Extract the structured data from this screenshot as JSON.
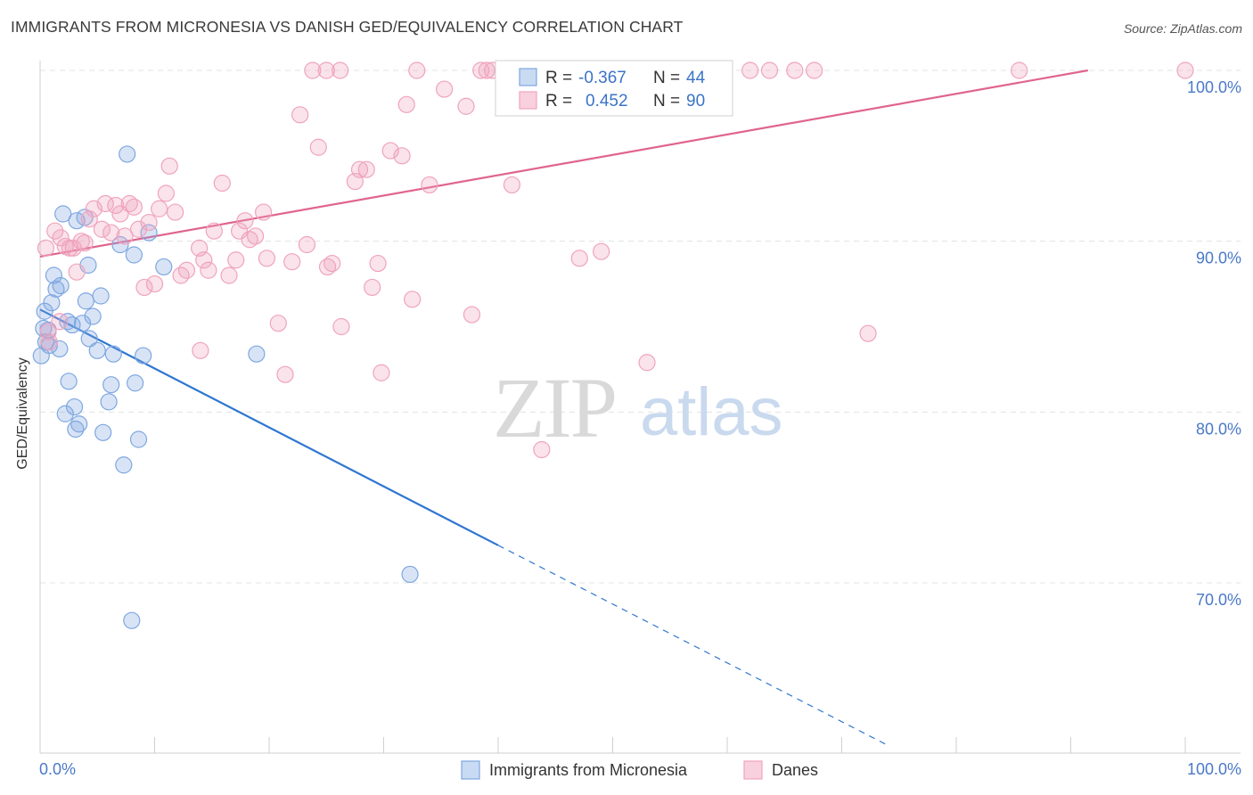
{
  "header": {
    "title": "IMMIGRANTS FROM MICRONESIA VS DANISH GED/EQUIVALENCY CORRELATION CHART",
    "source": "Source: ZipAtlas.com"
  },
  "watermark": {
    "zip": "ZIP",
    "atlas": "atlas"
  },
  "legend": {
    "r_label": "R =",
    "n_label": "N =",
    "entries": [
      {
        "r": "-0.367",
        "n": "44",
        "color": "#7ea7e0"
      },
      {
        "r": "0.452",
        "n": "90",
        "color": "#f0a3bd"
      }
    ]
  },
  "bottom_legend": [
    {
      "label": "Immigrants from Micronesia",
      "color": "#7ea7e0"
    },
    {
      "label": "Danes",
      "color": "#f0a3bd"
    }
  ],
  "chart_data": {
    "type": "scatter",
    "title": "IMMIGRANTS FROM MICRONESIA VS DANISH GED/EQUIVALENCY CORRELATION CHART",
    "xlabel": "",
    "ylabel": "GED/Equivalency",
    "xlim": [
      0,
      100
    ],
    "ylim": [
      60.5,
      101
    ],
    "y_ticks": [
      {
        "value": 100,
        "label": "100.0%"
      },
      {
        "value": 90,
        "label": "90.0%"
      },
      {
        "value": 80,
        "label": "80.0%"
      },
      {
        "value": 70,
        "label": "70.0%"
      }
    ],
    "x_tick_labels": [
      {
        "value": 0,
        "label": "0.0%"
      },
      {
        "value": 100,
        "label": "100.0%"
      }
    ],
    "grid": true,
    "legend_position": "top-center",
    "series": [
      {
        "name": "Immigrants from Micronesia",
        "color": "#7ea7e0",
        "line_color": "#2f76d2",
        "r": -0.367,
        "n": 44,
        "trend": {
          "x0": 0,
          "y0": 86.0,
          "x1": 40,
          "y1": 72.2,
          "dash_to_x": 74,
          "dash_to_y": 60.5
        },
        "points": [
          [
            0.1,
            83.3
          ],
          [
            0.3,
            84.9
          ],
          [
            0.4,
            85.9
          ],
          [
            0.5,
            84.1
          ],
          [
            0.7,
            84.8
          ],
          [
            1.0,
            86.4
          ],
          [
            1.2,
            88.0
          ],
          [
            1.4,
            87.2
          ],
          [
            1.7,
            83.7
          ],
          [
            1.8,
            87.4
          ],
          [
            2.0,
            91.6
          ],
          [
            2.2,
            79.9
          ],
          [
            2.4,
            85.3
          ],
          [
            2.5,
            81.8
          ],
          [
            2.8,
            85.1
          ],
          [
            3.0,
            80.3
          ],
          [
            3.1,
            79.0
          ],
          [
            3.2,
            91.2
          ],
          [
            3.4,
            79.3
          ],
          [
            3.7,
            85.2
          ],
          [
            3.9,
            91.4
          ],
          [
            4.0,
            86.5
          ],
          [
            4.2,
            88.6
          ],
          [
            4.3,
            84.3
          ],
          [
            4.6,
            85.6
          ],
          [
            5.0,
            83.6
          ],
          [
            5.3,
            86.8
          ],
          [
            5.5,
            78.8
          ],
          [
            6.0,
            80.6
          ],
          [
            6.2,
            81.6
          ],
          [
            6.4,
            83.4
          ],
          [
            7.0,
            89.8
          ],
          [
            7.3,
            76.9
          ],
          [
            7.6,
            95.1
          ],
          [
            8.0,
            67.8
          ],
          [
            8.2,
            89.2
          ],
          [
            8.3,
            81.7
          ],
          [
            8.6,
            78.4
          ],
          [
            9.0,
            83.3
          ],
          [
            9.5,
            90.5
          ],
          [
            10.8,
            88.5
          ],
          [
            18.9,
            83.4
          ],
          [
            32.3,
            70.5
          ],
          [
            0.8,
            83.9
          ]
        ]
      },
      {
        "name": "Danes",
        "color": "#f0a3bd",
        "line_color": "#e0648e",
        "r": 0.452,
        "n": 90,
        "trend": {
          "x0": 0,
          "y0": 89.1,
          "x1": 91.5,
          "y1": 100.0
        },
        "points": [
          [
            0.5,
            89.6
          ],
          [
            0.7,
            84.7
          ],
          [
            0.8,
            84.1
          ],
          [
            1.3,
            90.6
          ],
          [
            1.7,
            85.3
          ],
          [
            1.8,
            90.2
          ],
          [
            2.2,
            89.7
          ],
          [
            2.6,
            89.6
          ],
          [
            2.9,
            89.6
          ],
          [
            3.2,
            88.2
          ],
          [
            3.6,
            90.0
          ],
          [
            3.9,
            89.9
          ],
          [
            4.3,
            91.3
          ],
          [
            4.7,
            91.9
          ],
          [
            5.4,
            90.7
          ],
          [
            5.7,
            92.2
          ],
          [
            6.2,
            90.5
          ],
          [
            6.6,
            92.1
          ],
          [
            7.0,
            91.6
          ],
          [
            7.4,
            90.3
          ],
          [
            7.8,
            92.2
          ],
          [
            8.2,
            92.0
          ],
          [
            8.6,
            90.7
          ],
          [
            9.1,
            87.3
          ],
          [
            9.5,
            91.1
          ],
          [
            10.0,
            87.5
          ],
          [
            10.4,
            91.9
          ],
          [
            11.0,
            92.8
          ],
          [
            11.3,
            94.4
          ],
          [
            11.8,
            91.7
          ],
          [
            12.3,
            88.0
          ],
          [
            12.8,
            88.3
          ],
          [
            13.9,
            89.6
          ],
          [
            14.3,
            88.9
          ],
          [
            14.7,
            88.3
          ],
          [
            15.2,
            90.6
          ],
          [
            15.9,
            93.4
          ],
          [
            16.5,
            88.0
          ],
          [
            17.1,
            88.9
          ],
          [
            17.4,
            90.6
          ],
          [
            17.9,
            91.2
          ],
          [
            18.3,
            90.1
          ],
          [
            18.8,
            90.3
          ],
          [
            19.5,
            91.7
          ],
          [
            19.8,
            89.0
          ],
          [
            20.8,
            85.2
          ],
          [
            21.4,
            82.2
          ],
          [
            22.0,
            88.8
          ],
          [
            22.7,
            97.4
          ],
          [
            23.3,
            89.8
          ],
          [
            24.3,
            95.5
          ],
          [
            25.1,
            88.5
          ],
          [
            25.5,
            88.7
          ],
          [
            26.3,
            85.0
          ],
          [
            27.5,
            93.5
          ],
          [
            27.9,
            94.2
          ],
          [
            28.5,
            94.2
          ],
          [
            29.0,
            87.3
          ],
          [
            29.5,
            88.7
          ],
          [
            29.8,
            82.3
          ],
          [
            30.6,
            95.3
          ],
          [
            31.6,
            95.0
          ],
          [
            32.0,
            98.0
          ],
          [
            32.5,
            86.6
          ],
          [
            34.0,
            93.3
          ],
          [
            35.3,
            98.9
          ],
          [
            37.2,
            97.9
          ],
          [
            37.7,
            85.7
          ],
          [
            39.0,
            100.0
          ],
          [
            41.2,
            93.3
          ],
          [
            43.8,
            77.8
          ],
          [
            47.1,
            89.0
          ],
          [
            49.0,
            89.4
          ],
          [
            53.0,
            82.9
          ],
          [
            54.5,
            100.0
          ],
          [
            62.0,
            100.0
          ],
          [
            63.7,
            100.0
          ],
          [
            65.9,
            100.0
          ],
          [
            67.6,
            100.0
          ],
          [
            72.3,
            84.6
          ],
          [
            85.5,
            100.0
          ],
          [
            100.0,
            100.0
          ],
          [
            23.8,
            100.0
          ],
          [
            25.0,
            100.0
          ],
          [
            26.2,
            100.0
          ],
          [
            32.9,
            100.0
          ],
          [
            38.5,
            100.0
          ],
          [
            39.5,
            100.0
          ],
          [
            51.0,
            100.0
          ],
          [
            14.0,
            83.6
          ]
        ]
      }
    ]
  }
}
